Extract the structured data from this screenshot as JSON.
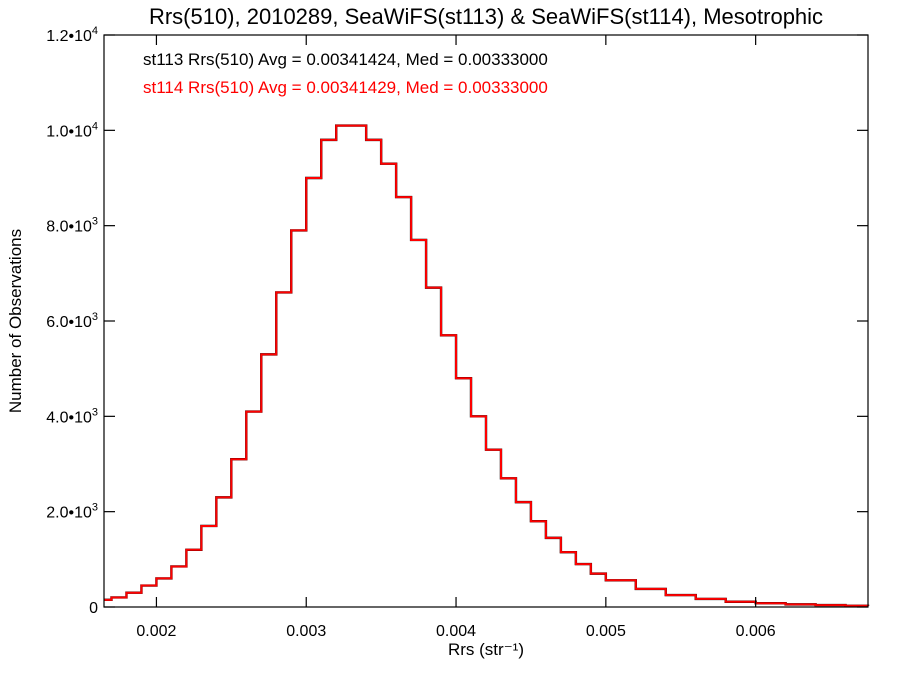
{
  "chart_data": {
    "type": "line",
    "title": "Rrs(510), 2010289, SeaWiFS(st113) & SeaWiFS(st114), Mesotrophic",
    "xlabel": "Rrs (str⁻¹)",
    "ylabel": "Number of Observations",
    "xlim": [
      0.00165,
      0.00675
    ],
    "ylim": [
      0,
      12000
    ],
    "x_ticks": [
      {
        "value": 0.002,
        "label": "0.002"
      },
      {
        "value": 0.003,
        "label": "0.003"
      },
      {
        "value": 0.004,
        "label": "0.004"
      },
      {
        "value": 0.005,
        "label": "0.005"
      },
      {
        "value": 0.006,
        "label": "0.006"
      }
    ],
    "y_ticks": [
      {
        "value": 0,
        "mantissa": "0",
        "exp": ""
      },
      {
        "value": 2000,
        "mantissa": "2.0•10",
        "exp": "3"
      },
      {
        "value": 4000,
        "mantissa": "4.0•10",
        "exp": "3"
      },
      {
        "value": 6000,
        "mantissa": "6.0•10",
        "exp": "3"
      },
      {
        "value": 8000,
        "mantissa": "8.0•10",
        "exp": "3"
      },
      {
        "value": 10000,
        "mantissa": "1.0•10",
        "exp": "4"
      },
      {
        "value": 12000,
        "mantissa": "1.2•10",
        "exp": "4"
      }
    ],
    "grid": false,
    "stats": [
      {
        "text": "st113 Rrs(510) Avg = 0.00341424, Med = 0.00333000",
        "color": "#000000"
      },
      {
        "text": "st114 Rrs(510) Avg = 0.00341429, Med = 0.00333000",
        "color": "#ff0000"
      }
    ],
    "series": [
      {
        "color": "#000000",
        "x": [
          0.00165,
          0.0017,
          0.0018,
          0.0019,
          0.002,
          0.0021,
          0.0022,
          0.0023,
          0.0024,
          0.0025,
          0.0026,
          0.0027,
          0.0028,
          0.0029,
          0.003,
          0.0031,
          0.0032,
          0.0033,
          0.0034,
          0.0035,
          0.0036,
          0.0037,
          0.0038,
          0.0039,
          0.004,
          0.0041,
          0.0042,
          0.0043,
          0.0044,
          0.0045,
          0.0046,
          0.0047,
          0.0048,
          0.0049,
          0.005,
          0.0052,
          0.0054,
          0.0056,
          0.0058,
          0.006,
          0.0062,
          0.0064,
          0.0066,
          0.00675
        ],
        "y": [
          150,
          200,
          300,
          450,
          600,
          850,
          1200,
          1700,
          2300,
          3100,
          4100,
          5300,
          6600,
          7900,
          9000,
          9800,
          10100,
          10100,
          9800,
          9300,
          8600,
          7700,
          6700,
          5700,
          4800,
          4000,
          3300,
          2700,
          2200,
          1800,
          1450,
          1150,
          900,
          700,
          560,
          380,
          250,
          170,
          110,
          80,
          55,
          40,
          25,
          20
        ]
      },
      {
        "color": "#ff0000",
        "x": [
          0.00165,
          0.0017,
          0.0018,
          0.0019,
          0.002,
          0.0021,
          0.0022,
          0.0023,
          0.0024,
          0.0025,
          0.0026,
          0.0027,
          0.0028,
          0.0029,
          0.003,
          0.0031,
          0.0032,
          0.0033,
          0.0034,
          0.0035,
          0.0036,
          0.0037,
          0.0038,
          0.0039,
          0.004,
          0.0041,
          0.0042,
          0.0043,
          0.0044,
          0.0045,
          0.0046,
          0.0047,
          0.0048,
          0.0049,
          0.005,
          0.0052,
          0.0054,
          0.0056,
          0.0058,
          0.006,
          0.0062,
          0.0064,
          0.0066,
          0.00675
        ],
        "y": [
          150,
          200,
          300,
          450,
          600,
          850,
          1200,
          1700,
          2300,
          3100,
          4100,
          5300,
          6600,
          7900,
          9000,
          9800,
          10100,
          10100,
          9800,
          9300,
          8600,
          7700,
          6700,
          5700,
          4800,
          4000,
          3300,
          2700,
          2200,
          1800,
          1450,
          1150,
          900,
          700,
          560,
          380,
          250,
          170,
          110,
          80,
          55,
          40,
          25,
          20
        ]
      }
    ]
  }
}
